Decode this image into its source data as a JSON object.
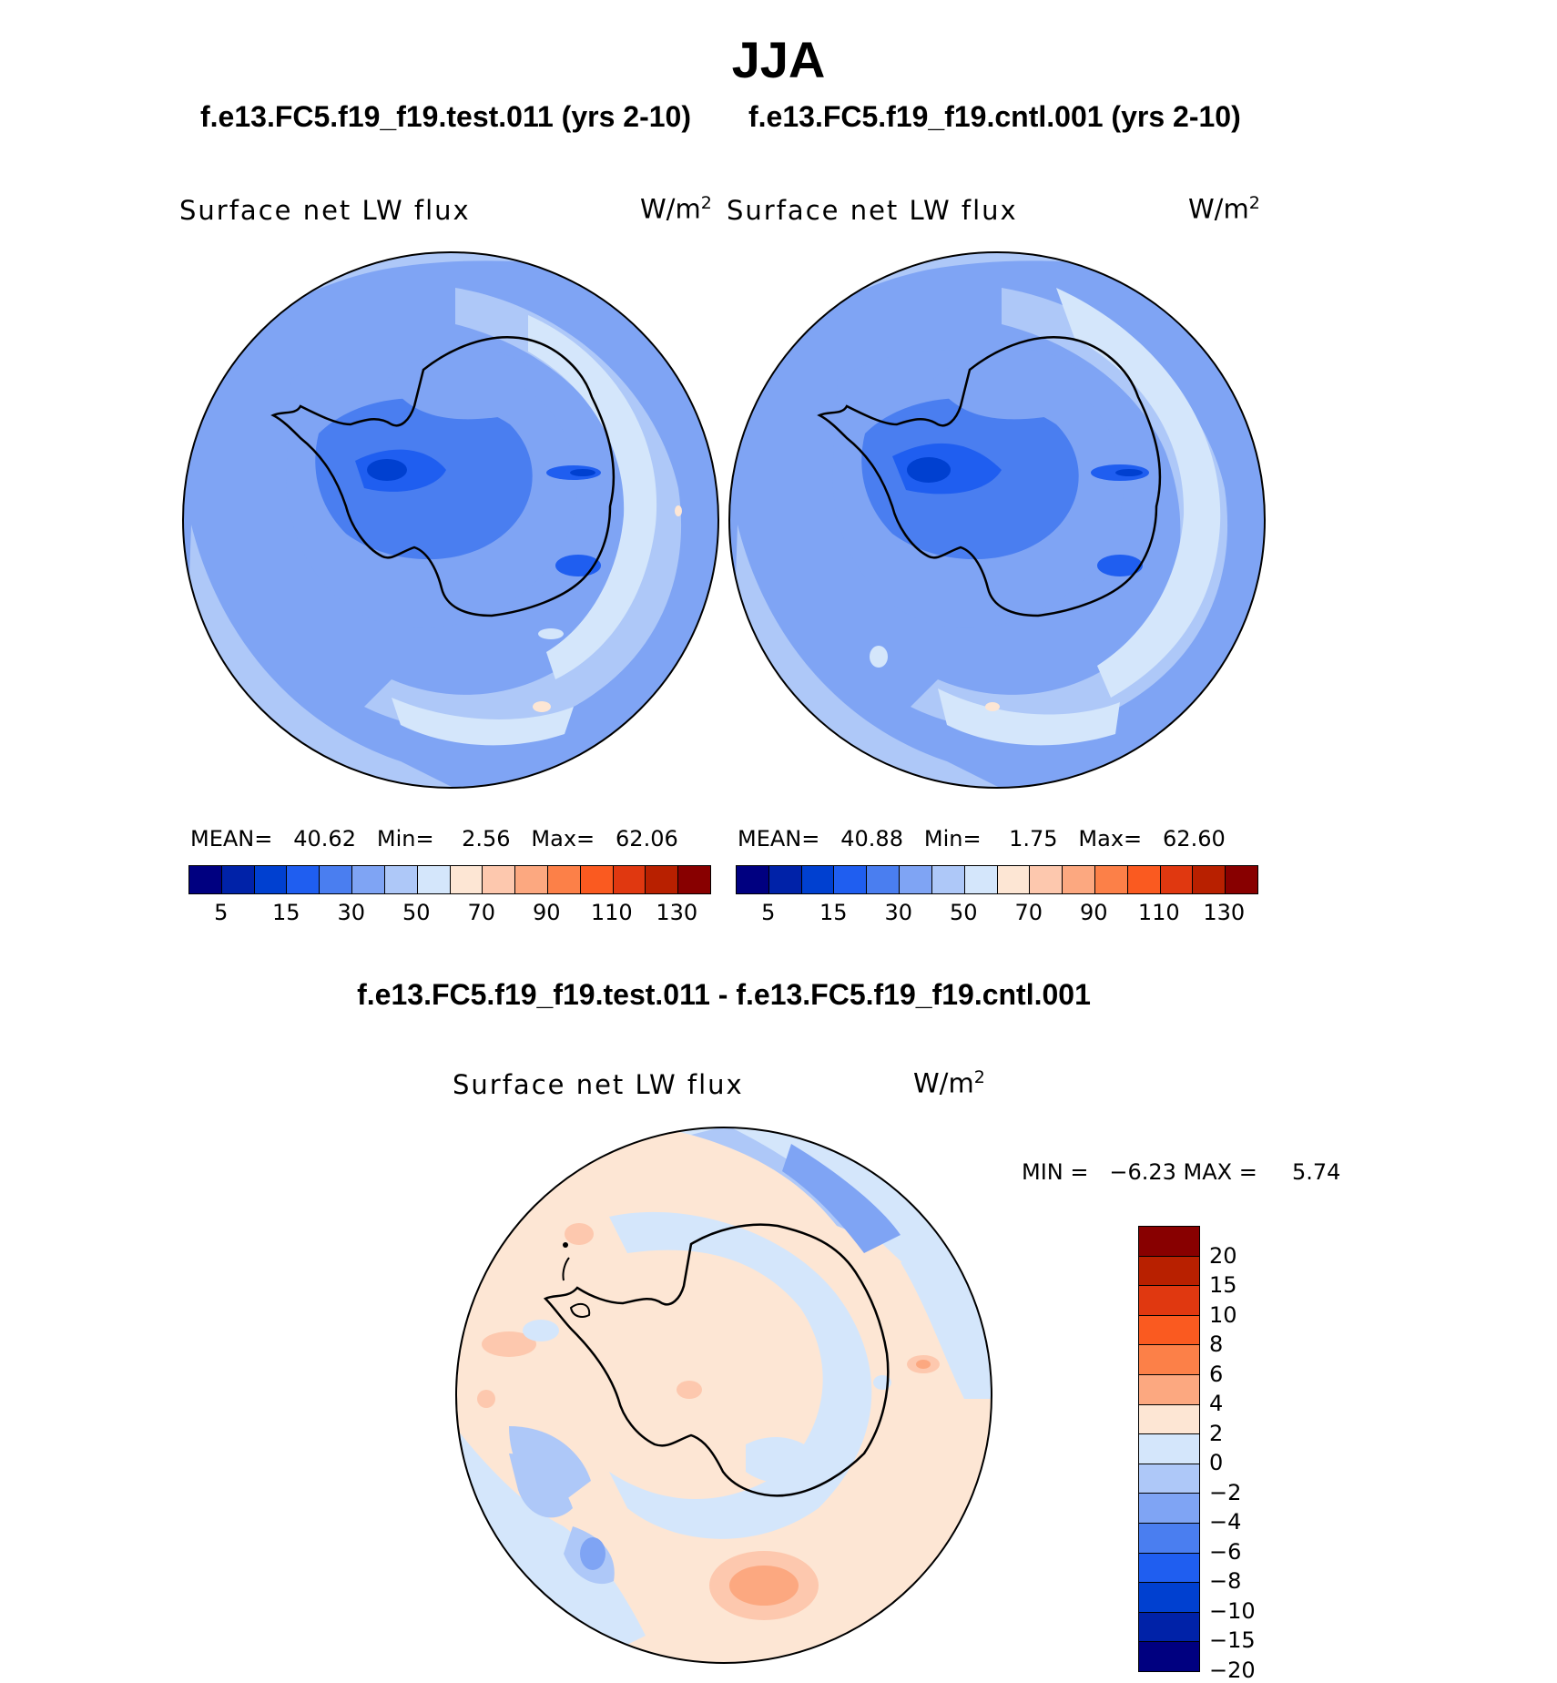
{
  "title": "JJA",
  "panels": [
    {
      "case": "f.e13.FC5.f19_f19.test.011 (yrs 2-10)",
      "label": "Surface net LW flux",
      "unit": "W/m",
      "unit_exp": "2",
      "mean_label": "MEAN=",
      "mean": "40.62",
      "min_label": "Min=",
      "min": "2.56",
      "max_label": "Max=",
      "max": "62.06"
    },
    {
      "case": "f.e13.FC5.f19_f19.cntl.001 (yrs 2-10)",
      "label": "Surface net LW flux",
      "unit": "W/m",
      "unit_exp": "2",
      "mean_label": "MEAN=",
      "mean": "40.88",
      "min_label": "Min=",
      "min": "1.75",
      "max_label": "Max=",
      "max": "62.60"
    }
  ],
  "colorbar_top": {
    "colors": [
      "#000080",
      "#0022a8",
      "#0040d0",
      "#1f5ef0",
      "#4a7ef0",
      "#7fa4f4",
      "#aec8f8",
      "#d4e6fb",
      "#fde6d4",
      "#fdc8ae",
      "#fca880",
      "#fc8048",
      "#fa5a20",
      "#e03810",
      "#b82000",
      "#880000"
    ],
    "ticks": [
      "5",
      "15",
      "30",
      "50",
      "70",
      "90",
      "110",
      "130"
    ]
  },
  "diff": {
    "title": "f.e13.FC5.f19_f19.test.011 - f.e13.FC5.f19_f19.cntl.001",
    "label": "Surface net LW flux",
    "unit": "W/m",
    "unit_exp": "2",
    "stats": "MIN =   −6.23 MAX =     5.74"
  },
  "colorbar_diff": {
    "colors": [
      "#880000",
      "#b82000",
      "#e03810",
      "#fa5a20",
      "#fc8048",
      "#fca880",
      "#fde6d4",
      "#d4e6fb",
      "#aec8f8",
      "#7fa4f4",
      "#4a7ef0",
      "#1f5ef0",
      "#0040d0",
      "#0022a8",
      "#000080"
    ],
    "ticks": [
      "20",
      "15",
      "10",
      "8",
      "6",
      "4",
      "2",
      "0",
      "−2",
      "−4",
      "−6",
      "−8",
      "−10",
      "−15",
      "−20"
    ]
  }
}
